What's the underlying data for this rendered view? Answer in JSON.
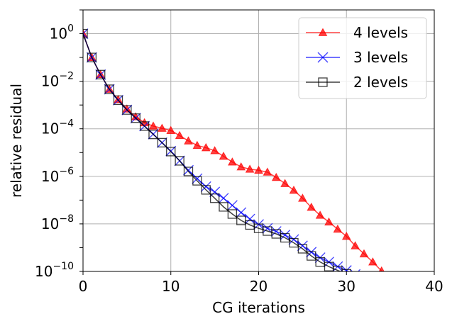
{
  "chart_data": {
    "type": "line",
    "title": "",
    "xlabel": "CG iterations",
    "ylabel": "relative residual",
    "yscale": "log",
    "xlim": [
      0,
      40
    ],
    "ylim": [
      1e-10,
      10
    ],
    "grid": true,
    "legend_position": "top-right",
    "x_ticks": [
      0,
      10,
      20,
      30,
      40
    ],
    "x_tick_labels": [
      "0",
      "10",
      "20",
      "30",
      "40"
    ],
    "y_ticks": [
      1e-10,
      1e-08,
      1e-06,
      0.0001,
      0.01,
      1
    ],
    "y_tick_labels": [
      {
        "base": "10",
        "exp": "−10"
      },
      {
        "base": "10",
        "exp": "−8"
      },
      {
        "base": "10",
        "exp": "−6"
      },
      {
        "base": "10",
        "exp": "−4"
      },
      {
        "base": "10",
        "exp": "−2"
      },
      {
        "base": "10",
        "exp": "0"
      }
    ],
    "series": [
      {
        "name": "4 levels",
        "color": "#ff0000",
        "marker": "triangle",
        "x": [
          0,
          1,
          2,
          3,
          4,
          5,
          6,
          7,
          8,
          9,
          10,
          11,
          12,
          13,
          14,
          15,
          16,
          17,
          18,
          19,
          20,
          21,
          22,
          23,
          24,
          25,
          26,
          27,
          28,
          29,
          30,
          31,
          32,
          33,
          34
        ],
        "values": [
          1,
          0.1,
          0.019,
          0.0046,
          0.0017,
          0.00068,
          0.00032,
          0.00018,
          0.00013,
          0.000105,
          8.5e-05,
          5.2e-05,
          3.1e-05,
          2e-05,
          1.6e-05,
          1.2e-05,
          7e-06,
          4e-06,
          2.5e-06,
          2e-06,
          1.8e-06,
          1.5e-06,
          9e-07,
          5e-07,
          2.6e-07,
          1.2e-07,
          5e-08,
          2.3e-08,
          1.2e-08,
          6e-09,
          3e-09,
          1.2e-09,
          5.5e-10,
          2.5e-10,
          1.05e-10
        ]
      },
      {
        "name": "3 levels",
        "color": "#0000ff",
        "marker": "x",
        "x": [
          0,
          1,
          2,
          3,
          4,
          5,
          6,
          7,
          8,
          9,
          10,
          11,
          12,
          13,
          14,
          15,
          16,
          17,
          18,
          19,
          20,
          21,
          22,
          23,
          24,
          25,
          26,
          27,
          28,
          29,
          30,
          31
        ],
        "values": [
          1,
          0.1,
          0.019,
          0.0046,
          0.0016,
          0.00062,
          0.00028,
          0.00013,
          6e-05,
          2.6e-05,
          1.15e-05,
          4.5e-06,
          1.8e-06,
          8e-07,
          3.7e-07,
          2.2e-07,
          1.2e-07,
          6e-08,
          3e-08,
          1.6e-08,
          9.5e-09,
          6.5e-09,
          4.8e-09,
          3.4e-09,
          2.2e-09,
          1.2e-09,
          6.5e-10,
          3.8e-10,
          2.5e-10,
          1.6e-10,
          1.1e-10,
          7.5e-11
        ]
      },
      {
        "name": "2 levels",
        "color": "#000000",
        "marker": "square",
        "x": [
          0,
          1,
          2,
          3,
          4,
          5,
          6,
          7,
          8,
          9,
          10,
          11,
          12,
          13,
          14,
          15,
          16,
          17,
          18,
          19,
          20,
          21,
          22,
          23,
          24,
          25,
          26,
          27,
          28,
          29,
          30
        ],
        "values": [
          1,
          0.1,
          0.019,
          0.0046,
          0.0016,
          0.00062,
          0.00028,
          0.00013,
          5.8e-05,
          2.6e-05,
          1.1e-05,
          4.5e-06,
          1.6e-06,
          6.5e-07,
          2.7e-07,
          1.2e-07,
          5.2e-08,
          2.6e-08,
          1.4e-08,
          9e-09,
          6.5e-09,
          5e-09,
          3.8e-09,
          2.6e-09,
          1.6e-09,
          9e-10,
          4.5e-10,
          2.5e-10,
          1.6e-10,
          1.1e-10,
          8e-11
        ]
      }
    ]
  }
}
